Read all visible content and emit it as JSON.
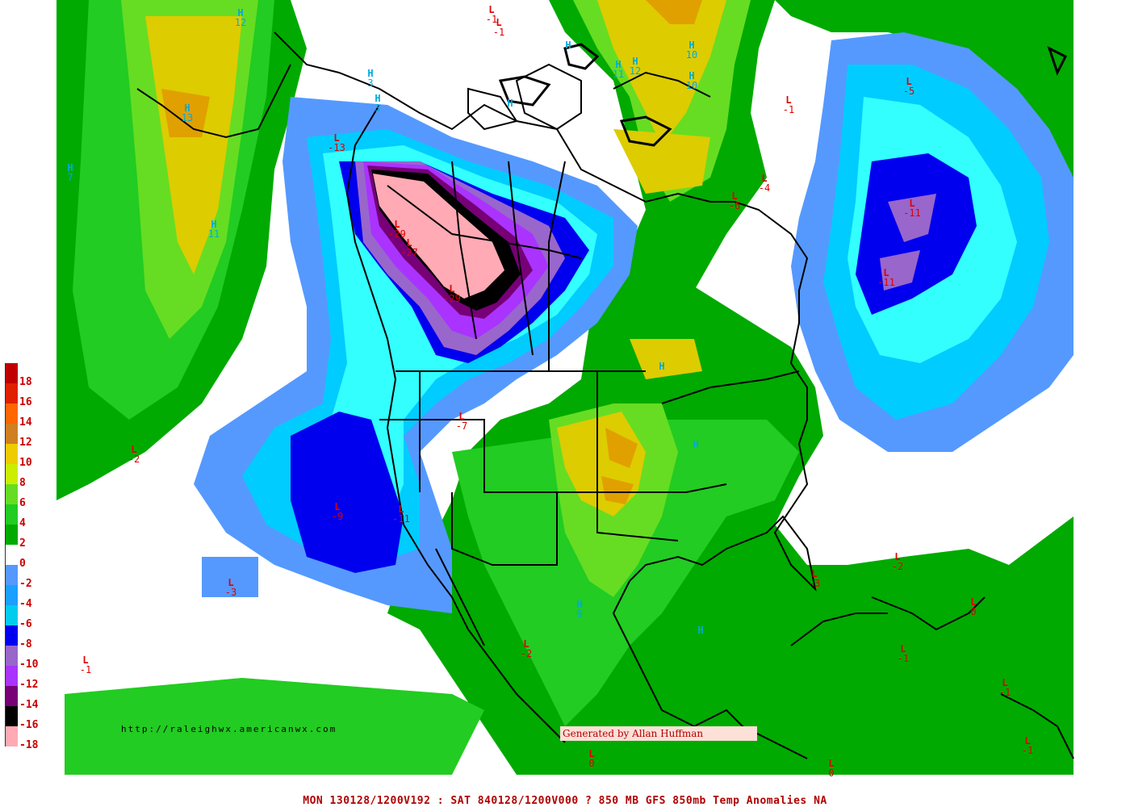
{
  "map": {
    "colors": {
      "background": "#ffffff",
      "land_outline": "#000000",
      "ramp_warm": [
        "#00aa00",
        "#22cc22",
        "#66dd22",
        "#aaee00",
        "#ddcc00",
        "#e0a000",
        "#d07010",
        "#dd4000",
        "#ee0000"
      ],
      "ramp_cold": [
        "#5599ff",
        "#00ccff",
        "#33ffff",
        "#0000ee",
        "#9966cc",
        "#aa33ff",
        "#770077",
        "#000000",
        "#ffaab4"
      ]
    },
    "legend": {
      "labels": [
        "18",
        "16",
        "14",
        "12",
        "10",
        "8",
        "6",
        "4",
        "2",
        "0",
        "-2",
        "-4",
        "-6",
        "-8",
        "-10",
        "-12",
        "-14",
        "-16",
        "-18"
      ],
      "swatches": [
        "#c00000",
        "#e02000",
        "#ff6600",
        "#d08020",
        "#eecc00",
        "#ccee00",
        "#66dd22",
        "#22cc22",
        "#00aa00",
        "#ffffff",
        "#5599ff",
        "#1aa0ff",
        "#00ccee",
        "#0000ee",
        "#9966cc",
        "#aa33ff",
        "#770077",
        "#000000",
        "#ffaab4"
      ]
    },
    "markers": [
      {
        "type": "H",
        "value": "12"
      },
      {
        "type": "H",
        "value": "13"
      },
      {
        "type": "H",
        "value": "7"
      },
      {
        "type": "H",
        "value": "11"
      },
      {
        "type": "H",
        "value": "3"
      },
      {
        "type": "H",
        "value": "3"
      },
      {
        "type": "L",
        "value": "-1"
      },
      {
        "type": "L",
        "value": "-1"
      },
      {
        "type": "H",
        "value": "10"
      },
      {
        "type": "H",
        "value": "12"
      },
      {
        "type": "H",
        "value": "11"
      },
      {
        "type": "H",
        "value": "10"
      },
      {
        "type": "L",
        "value": "-5"
      },
      {
        "type": "L",
        "value": "-1"
      },
      {
        "type": "L",
        "value": "-4"
      },
      {
        "type": "L",
        "value": "-6"
      },
      {
        "type": "L",
        "value": "-11"
      },
      {
        "type": "L",
        "value": "-11"
      },
      {
        "type": "L",
        "value": "-13"
      },
      {
        "type": "L",
        "value": "-29"
      },
      {
        "type": "L",
        "value": "-27"
      },
      {
        "type": "L",
        "value": "-29"
      },
      {
        "type": "L",
        "value": "-7"
      },
      {
        "type": "L",
        "value": "-2"
      },
      {
        "type": "L",
        "value": "-9"
      },
      {
        "type": "L",
        "value": "-11"
      },
      {
        "type": "L",
        "value": "-3"
      },
      {
        "type": "L",
        "value": "-1"
      },
      {
        "type": "L",
        "value": "-2"
      },
      {
        "type": "H",
        "value": "9"
      },
      {
        "type": "L",
        "value": "-3"
      },
      {
        "type": "L",
        "value": "-2"
      },
      {
        "type": "L",
        "value": "0"
      },
      {
        "type": "L",
        "value": "-1"
      },
      {
        "type": "L",
        "value": "-1"
      },
      {
        "type": "L",
        "value": "0"
      },
      {
        "type": "L",
        "value": "0"
      },
      {
        "type": "L",
        "value": "-1"
      },
      {
        "type": "H",
        "value": ""
      },
      {
        "type": "H",
        "value": ""
      },
      {
        "type": "H",
        "value": ""
      },
      {
        "type": "H",
        "value": ""
      },
      {
        "type": "H",
        "value": ""
      }
    ]
  },
  "credits": {
    "url": "http://raleighwx.americanwx.com",
    "author": "Generated by Allan Huffman"
  },
  "footer": "MON 130128/1200V192 : SAT 840128/1200V000  ? 850 MB GFS 850mb Temp Anomalies NA"
}
